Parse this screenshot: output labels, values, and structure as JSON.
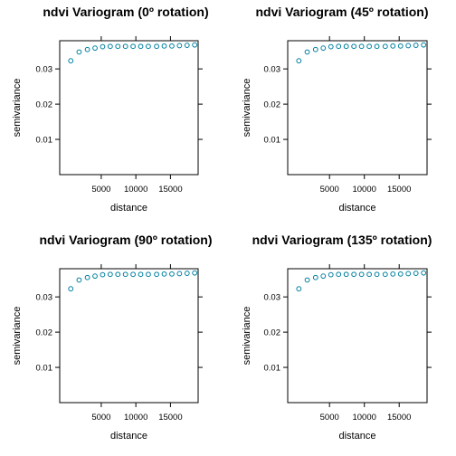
{
  "chart_data": [
    {
      "type": "scatter",
      "title": "ndvi Variogram (0º rotation)",
      "xlabel": "distance",
      "ylabel": "semivariance",
      "xlim": [
        -1000,
        19000
      ],
      "ylim": [
        0,
        0.038
      ],
      "xticks": [
        5000,
        10000,
        15000
      ],
      "yticks": [
        0.01,
        0.02,
        0.03
      ],
      "xticklabels": [
        "5000",
        "10000",
        "15000"
      ],
      "yticklabels": [
        "0.01",
        "0.02",
        "0.03"
      ],
      "grid": false,
      "marker_color": "#0080a0",
      "x": [
        600,
        1800,
        3000,
        4100,
        5200,
        6300,
        7400,
        8500,
        9600,
        10700,
        11800,
        13000,
        14100,
        15200,
        16300,
        17400,
        18500
      ],
      "y": [
        0.0323,
        0.0348,
        0.0355,
        0.0359,
        0.0363,
        0.0364,
        0.0364,
        0.0364,
        0.0364,
        0.0364,
        0.0364,
        0.0364,
        0.0365,
        0.0365,
        0.0366,
        0.0367,
        0.0368
      ]
    },
    {
      "type": "scatter",
      "title": "ndvi Variogram (45º rotation)",
      "xlabel": "distance",
      "ylabel": "semivariance",
      "xlim": [
        -1000,
        19000
      ],
      "ylim": [
        0,
        0.038
      ],
      "xticks": [
        5000,
        10000,
        15000
      ],
      "yticks": [
        0.01,
        0.02,
        0.03
      ],
      "xticklabels": [
        "5000",
        "10000",
        "15000"
      ],
      "yticklabels": [
        "0.01",
        "0.02",
        "0.03"
      ],
      "grid": false,
      "marker_color": "#0080a0",
      "x": [
        600,
        1800,
        3000,
        4100,
        5200,
        6300,
        7400,
        8500,
        9600,
        10700,
        11800,
        13000,
        14100,
        15200,
        16300,
        17400,
        18500
      ],
      "y": [
        0.0323,
        0.0348,
        0.0355,
        0.0359,
        0.0363,
        0.0364,
        0.0364,
        0.0364,
        0.0364,
        0.0364,
        0.0364,
        0.0364,
        0.0365,
        0.0365,
        0.0366,
        0.0367,
        0.0368
      ]
    },
    {
      "type": "scatter",
      "title": "ndvi Variogram (90º rotation)",
      "xlabel": "distance",
      "ylabel": "semivariance",
      "xlim": [
        -1000,
        19000
      ],
      "ylim": [
        0,
        0.038
      ],
      "xticks": [
        5000,
        10000,
        15000
      ],
      "yticks": [
        0.01,
        0.02,
        0.03
      ],
      "xticklabels": [
        "5000",
        "10000",
        "15000"
      ],
      "yticklabels": [
        "0.01",
        "0.02",
        "0.03"
      ],
      "grid": false,
      "marker_color": "#0080a0",
      "x": [
        600,
        1800,
        3000,
        4100,
        5200,
        6300,
        7400,
        8500,
        9600,
        10700,
        11800,
        13000,
        14100,
        15200,
        16300,
        17400,
        18500
      ],
      "y": [
        0.0323,
        0.0348,
        0.0355,
        0.0359,
        0.0363,
        0.0364,
        0.0364,
        0.0364,
        0.0364,
        0.0364,
        0.0364,
        0.0364,
        0.0365,
        0.0365,
        0.0366,
        0.0367,
        0.0368
      ]
    },
    {
      "type": "scatter",
      "title": "ndvi Variogram (135º rotation)",
      "xlabel": "distance",
      "ylabel": "semivariance",
      "xlim": [
        -1000,
        19000
      ],
      "ylim": [
        0,
        0.038
      ],
      "xticks": [
        5000,
        10000,
        15000
      ],
      "yticks": [
        0.01,
        0.02,
        0.03
      ],
      "xticklabels": [
        "5000",
        "10000",
        "15000"
      ],
      "yticklabels": [
        "0.01",
        "0.02",
        "0.03"
      ],
      "grid": false,
      "marker_color": "#0080a0",
      "x": [
        600,
        1800,
        3000,
        4100,
        5200,
        6300,
        7400,
        8500,
        9600,
        10700,
        11800,
        13000,
        14100,
        15200,
        16300,
        17400,
        18500
      ],
      "y": [
        0.0323,
        0.0348,
        0.0355,
        0.0359,
        0.0363,
        0.0364,
        0.0364,
        0.0364,
        0.0364,
        0.0364,
        0.0364,
        0.0364,
        0.0365,
        0.0365,
        0.0366,
        0.0367,
        0.0368
      ]
    }
  ]
}
